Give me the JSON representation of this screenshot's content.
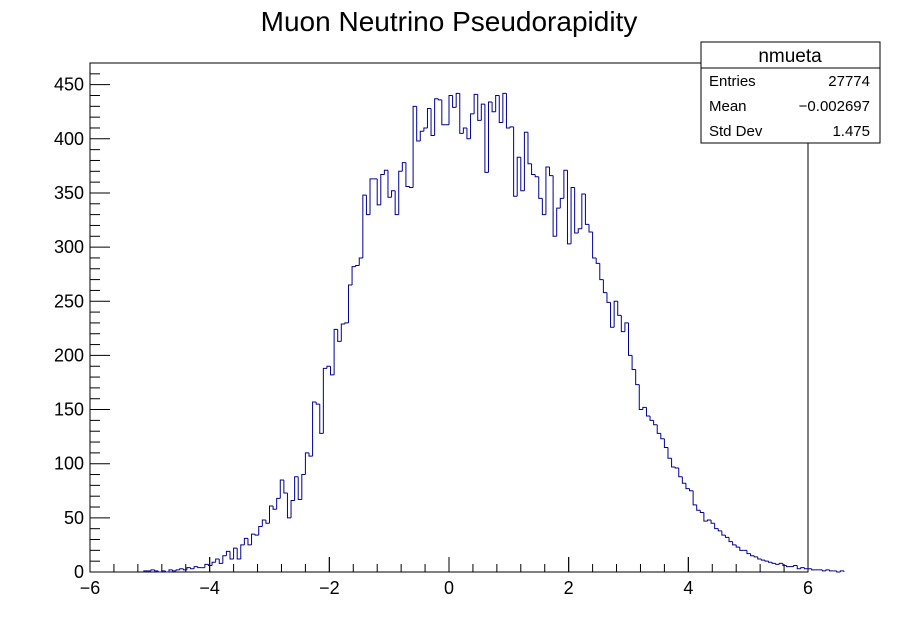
{
  "chart_data": {
    "type": "histogram",
    "title": "Muon Neutrino Pseudorapidity",
    "xlabel": "",
    "ylabel": "",
    "xlim": [
      -6,
      6
    ],
    "ylim": [
      0,
      470
    ],
    "x_ticks": [
      -6,
      -4,
      -2,
      0,
      2,
      4,
      6
    ],
    "x_tick_labels": [
      "−6",
      "−4",
      "−2",
      "0",
      "2",
      "4",
      "6"
    ],
    "y_ticks": [
      0,
      50,
      100,
      150,
      200,
      250,
      300,
      350,
      400,
      450
    ],
    "y_tick_labels": [
      "0",
      "50",
      "100",
      "150",
      "200",
      "250",
      "300",
      "350",
      "400",
      "450"
    ],
    "bin_width": 0.06,
    "bins_start": -5.1,
    "bins_values": [
      1,
      1,
      2,
      1,
      0,
      1,
      0,
      2,
      1,
      2,
      3,
      2,
      4,
      3,
      5,
      4,
      4,
      7,
      6,
      9,
      12,
      8,
      15,
      19,
      12,
      22,
      12,
      25,
      31,
      25,
      35,
      34,
      42,
      48,
      45,
      61,
      58,
      68,
      85,
      73,
      50,
      66,
      88,
      67,
      90,
      110,
      107,
      157,
      155,
      128,
      188,
      190,
      182,
      224,
      213,
      229,
      230,
      265,
      282,
      283,
      290,
      348,
      330,
      363,
      363,
      339,
      367,
      371,
      346,
      352,
      330,
      370,
      378,
      356,
      355,
      430,
      398,
      407,
      410,
      428,
      403,
      437,
      436,
      413,
      413,
      440,
      429,
      442,
      405,
      410,
      400,
      423,
      441,
      417,
      432,
      369,
      434,
      425,
      440,
      415,
      442,
      410,
      411,
      347,
      383,
      352,
      406,
      377,
      367,
      365,
      345,
      330,
      374,
      366,
      310,
      336,
      345,
      371,
      303,
      355,
      313,
      317,
      349,
      321,
      314,
      290,
      285,
      270,
      258,
      249,
      226,
      250,
      237,
      222,
      230,
      200,
      187,
      173,
      150,
      152,
      144,
      140,
      136,
      128,
      123,
      115,
      105,
      97,
      96,
      88,
      82,
      77,
      75,
      62,
      57,
      55,
      47,
      48,
      45,
      40,
      38,
      34,
      32,
      28,
      25,
      23,
      20,
      20,
      17,
      15,
      14,
      12,
      11,
      10,
      9,
      8,
      7,
      8,
      6,
      5,
      5,
      6,
      3,
      4,
      3,
      3,
      2,
      2,
      2,
      1,
      2,
      1,
      1,
      0,
      1
    ],
    "line_color": "#000099",
    "legend": "top-right",
    "stats_box": {
      "title": "nmueta",
      "rows": [
        {
          "label": "Entries",
          "value": "27774"
        },
        {
          "label": "Mean",
          "value": "−0.002697"
        },
        {
          "label": "Std Dev",
          "value": "1.475"
        }
      ]
    }
  }
}
